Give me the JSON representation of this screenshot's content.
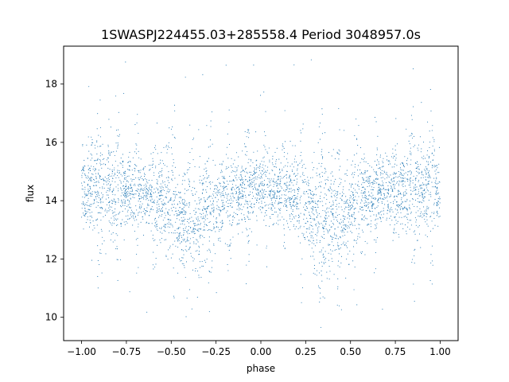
{
  "chart_data": {
    "type": "scatter",
    "title": "1SWASPJ224455.03+285558.4 Period 3048957.0s",
    "xlabel": "phase",
    "ylabel": "flux",
    "xlim": [
      -1.1,
      1.1
    ],
    "ylim": [
      9.2,
      19.3
    ],
    "x_ticks": [
      -1.0,
      -0.75,
      -0.5,
      -0.25,
      0.0,
      0.25,
      0.5,
      0.75,
      1.0
    ],
    "x_tick_labels": [
      "−1.00",
      "−0.75",
      "−0.50",
      "−0.25",
      "0.00",
      "0.25",
      "0.50",
      "0.75",
      "1.00"
    ],
    "y_ticks": [
      10,
      12,
      14,
      16,
      18
    ],
    "y_tick_labels": [
      "10",
      "12",
      "14",
      "16",
      "18"
    ],
    "grid": false,
    "legend": "none",
    "marker_color": "#1f77b4",
    "series_profile": {
      "phase": [
        -1.0,
        -0.95,
        -0.9,
        -0.85,
        -0.8,
        -0.75,
        -0.7,
        -0.65,
        -0.6,
        -0.55,
        -0.5,
        -0.45,
        -0.4,
        -0.35,
        -0.3,
        -0.25,
        -0.2,
        -0.15,
        -0.1,
        -0.05,
        0.0
      ],
      "mean_flux": [
        14.3,
        14.6,
        14.5,
        14.4,
        14.4,
        14.3,
        14.4,
        14.3,
        14.1,
        14.0,
        13.7,
        13.4,
        13.4,
        13.3,
        13.6,
        13.9,
        14.1,
        14.2,
        14.3,
        14.4,
        14.5
      ],
      "spread": [
        0.5,
        0.9,
        0.7,
        0.9,
        0.8,
        0.5,
        0.6,
        0.5,
        0.6,
        0.8,
        0.8,
        0.7,
        1.0,
        1.0,
        0.9,
        0.7,
        0.7,
        0.6,
        0.6,
        0.6,
        0.5
      ],
      "mirrored_about": 0.0
    },
    "outlier_flux_range": [
      9.6,
      18.9
    ]
  }
}
